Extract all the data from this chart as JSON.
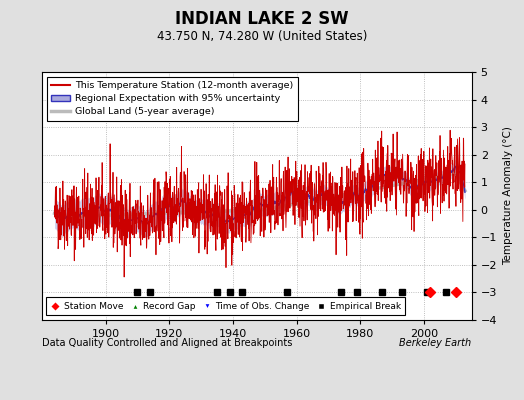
{
  "title": "INDIAN LAKE 2 SW",
  "subtitle": "43.750 N, 74.280 W (United States)",
  "ylabel": "Temperature Anomaly (°C)",
  "xlabel_note": "Data Quality Controlled and Aligned at Breakpoints",
  "credit": "Berkeley Earth",
  "ylim": [
    -4,
    5
  ],
  "xlim": [
    1880,
    2015
  ],
  "xticks": [
    1900,
    1920,
    1940,
    1960,
    1980,
    2000
  ],
  "yticks": [
    -4,
    -3,
    -2,
    -1,
    0,
    1,
    2,
    3,
    4,
    5
  ],
  "bg_color": "#e0e0e0",
  "plot_bg_color": "#ffffff",
  "station_color": "#cc0000",
  "regional_color": "#3333bb",
  "regional_fill": "#aaaadd",
  "global_color": "#bbbbbb",
  "empirical_breaks": [
    1910,
    1914,
    1935,
    1939,
    1943,
    1957,
    1974,
    1979,
    1987,
    1993,
    2001,
    2007
  ],
  "station_moves": [
    2002,
    2010
  ],
  "record_gaps": [],
  "tobs_changes": [],
  "seed": 42
}
